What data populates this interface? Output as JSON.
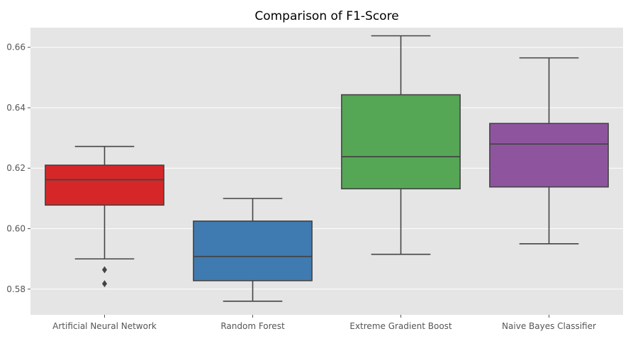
{
  "chart_data": {
    "type": "box",
    "title": "Comparison of F1-Score",
    "xlabel": "",
    "ylabel": "",
    "ylim": [
      0.5715,
      0.6665
    ],
    "yticks": [
      "0.58",
      "0.60",
      "0.62",
      "0.64",
      "0.66"
    ],
    "grid": true,
    "background": "#e5e5e5",
    "categories": [
      "Artificial Neural Network",
      "Random Forest",
      "Extreme Gradient Boost",
      "Naive Bayes Classifier"
    ],
    "series": [
      {
        "color": "#d62728",
        "whisker_low": 0.59,
        "q1": 0.6078,
        "median": 0.6162,
        "q3": 0.621,
        "whisker_high": 0.6272,
        "outliers": [
          0.5864,
          0.5818
        ]
      },
      {
        "color": "#3f7bb0",
        "whisker_low": 0.576,
        "q1": 0.5828,
        "median": 0.5908,
        "q3": 0.6025,
        "whisker_high": 0.61,
        "outliers": []
      },
      {
        "color": "#55a756",
        "whisker_low": 0.5915,
        "q1": 0.6132,
        "median": 0.6238,
        "q3": 0.6443,
        "whisker_high": 0.6638,
        "outliers": []
      },
      {
        "color": "#8e559e",
        "whisker_low": 0.595,
        "q1": 0.6138,
        "median": 0.628,
        "q3": 0.6348,
        "whisker_high": 0.6565,
        "outliers": []
      }
    ]
  }
}
